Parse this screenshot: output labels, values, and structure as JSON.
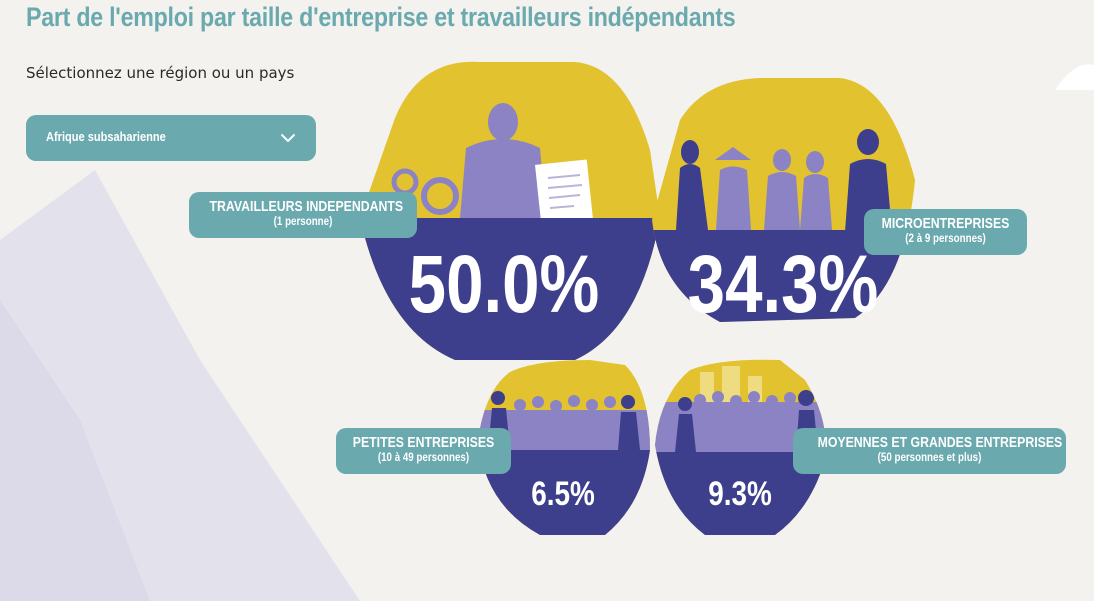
{
  "title": "Part de l'emploi par taille d'entreprise et travailleurs indépendants",
  "selector": {
    "prompt": "Sélectionnez une région ou un pays",
    "selected": "Afrique subsaharienne"
  },
  "colors": {
    "teal": "#6aa9ae",
    "navy": "#3d3f8c",
    "yellow": "#e2c22e",
    "figure": "#8b83c3",
    "background": "#f3f2ee"
  },
  "chart_data": {
    "type": "bar",
    "categories": [
      "Travailleurs indépendants",
      "Microentreprises",
      "Petites entreprises",
      "Moyennes et grandes entreprises"
    ],
    "values": [
      50.0,
      34.3,
      6.5,
      9.3
    ],
    "unit": "%",
    "labels": [
      {
        "name": "TRAVAILLEURS INDEPENDANTS",
        "sub": "(1 personne)",
        "display": "50.0%"
      },
      {
        "name": "MICROENTREPRISES",
        "sub": "(2 à 9 personnes)",
        "display": "34.3%"
      },
      {
        "name": "PETITES ENTREPRISES",
        "sub": "(10 à 49 personnes)",
        "display": "6.5%"
      },
      {
        "name": "MOYENNES ET GRANDES ENTREPRISES",
        "sub": "(50 personnes et plus)",
        "display": "9.3%"
      }
    ]
  }
}
